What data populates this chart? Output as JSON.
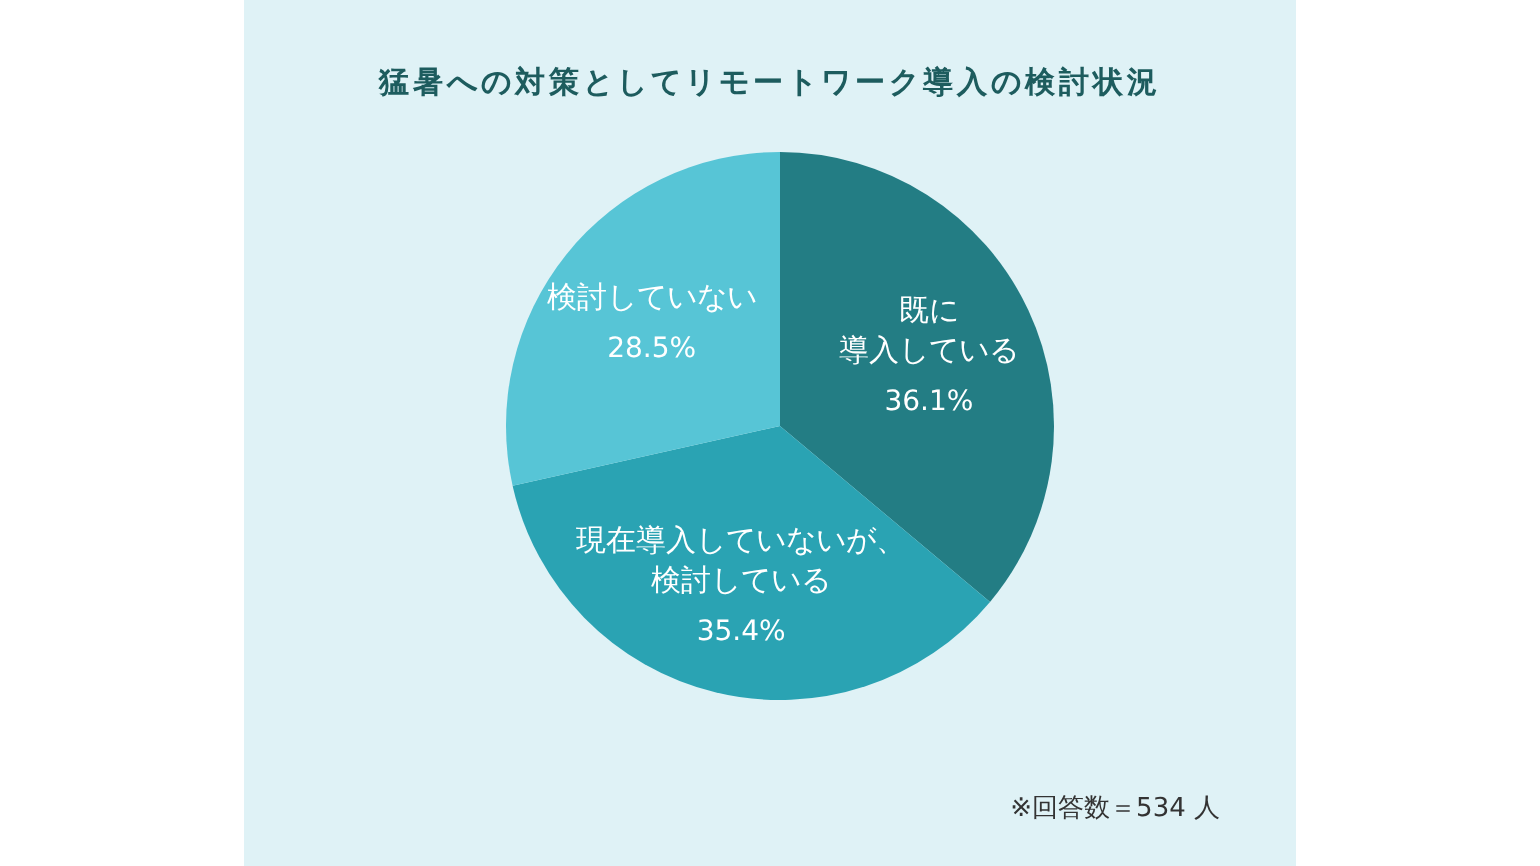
{
  "chart_data": {
    "type": "pie",
    "title": "猛暑への対策としてリモートワーク導入の検討状況",
    "categories": [
      "既に導入している",
      "現在導入していないが、検討している",
      "検討していない"
    ],
    "values": [
      36.1,
      35.4,
      28.5
    ],
    "colors": [
      "#237d84",
      "#2aa3b3",
      "#57c5d6"
    ],
    "value_labels": [
      "36.1%",
      "35.4%",
      "28.5%"
    ],
    "annotations": [
      "※回答数＝534 人"
    ]
  }
}
